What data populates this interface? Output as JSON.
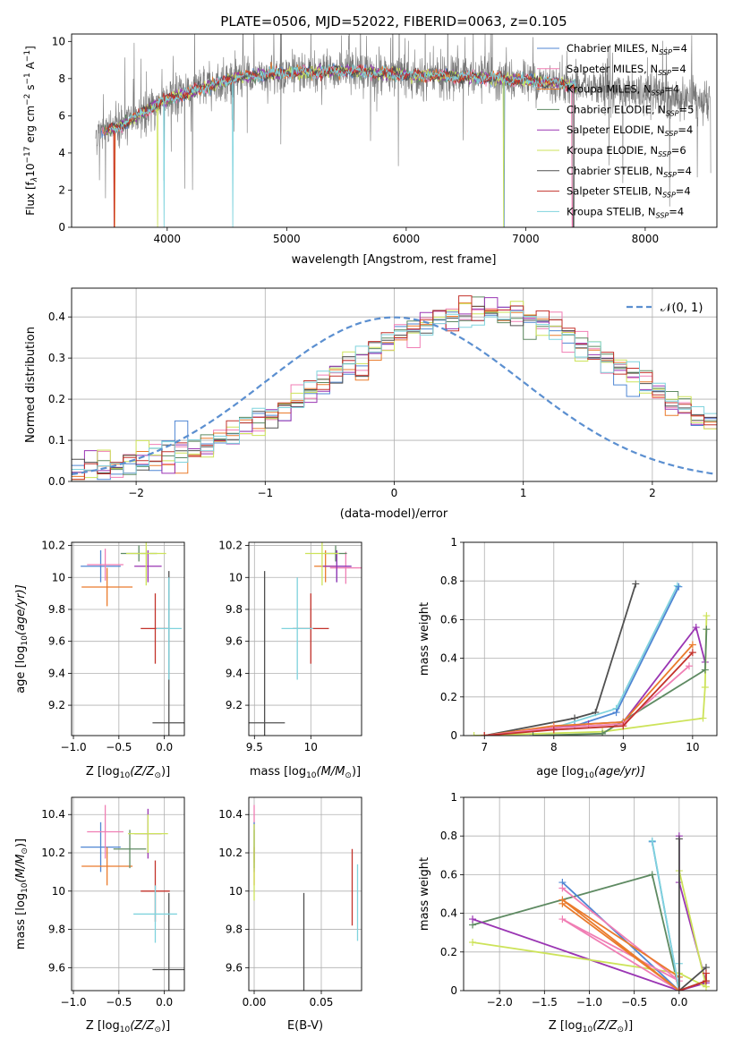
{
  "colors": {
    "chabrier_miles": "#4f86d3",
    "salpeter_miles": "#f07eb4",
    "kroupa_miles": "#ea7b2c",
    "chabrier_elodie": "#5e8a62",
    "salpeter_elodie": "#9a35b3",
    "kroupa_elodie": "#cde35a",
    "chabrier_stelib": "#505050",
    "salpeter_stelib": "#c3322b",
    "kroupa_stelib": "#7fd3dd",
    "norm_curve": "#5b8fd0",
    "grid": "#b0b0b0"
  },
  "chart_data": [
    {
      "type": "line",
      "panel": "spectrum",
      "title": "PLATE=0506, MJD=52022, FIBERID=0063, z=0.105",
      "xlabel": "wavelength [Angstrom, rest frame]",
      "ylabel_main": "Flux [f",
      "ylabel_sub1": "λ",
      "ylabel_mid": "10",
      "ylabel_sup1": "−17",
      "ylabel_rest": " erg cm",
      "ylabel_sup2": "−2",
      "ylabel_s": " s",
      "ylabel_sup3": "−1",
      "ylabel_end": " A",
      "ylabel_sup4": "−1",
      "ylabel_close": "]",
      "xlim": [
        3200,
        8600
      ],
      "ylim": [
        0,
        10.4
      ],
      "xticks": [
        4000,
        5000,
        6000,
        7000,
        8000
      ],
      "yticks": [
        0,
        2,
        4,
        6,
        8,
        10
      ],
      "grid": false,
      "legend_position": "upper-right",
      "legend": [
        {
          "label": "Chabrier MILES, N",
          "sub": "SSP",
          "eq": "=4",
          "color_key": "chabrier_miles"
        },
        {
          "label": "Salpeter MILES, N",
          "sub": "SSP",
          "eq": "=4",
          "color_key": "salpeter_miles"
        },
        {
          "label": "Kroupa MILES, N",
          "sub": "SSP",
          "eq": "=4",
          "color_key": "kroupa_miles"
        },
        {
          "label": "Chabrier ELODIE, N",
          "sub": "SSP",
          "eq": "=5",
          "color_key": "chabrier_elodie"
        },
        {
          "label": "Salpeter ELODIE, N",
          "sub": "SSP",
          "eq": "=4",
          "color_key": "salpeter_elodie"
        },
        {
          "label": "Kroupa ELODIE, N",
          "sub": "SSP",
          "eq": "=6",
          "color_key": "kroupa_elodie"
        },
        {
          "label": "Chabrier STELIB, N",
          "sub": "SSP",
          "eq": "=4",
          "color_key": "chabrier_stelib"
        },
        {
          "label": "Salpeter STELIB, N",
          "sub": "SSP",
          "eq": "=4",
          "color_key": "salpeter_stelib"
        },
        {
          "label": "Kroupa STELIB, N",
          "sub": "SSP",
          "eq": "=4",
          "color_key": "kroupa_stelib"
        }
      ],
      "continuum": [
        [
          3400,
          5.0
        ],
        [
          3600,
          5.4
        ],
        [
          3800,
          6.2
        ],
        [
          4000,
          6.9
        ],
        [
          4300,
          7.5
        ],
        [
          4600,
          8.1
        ],
        [
          5000,
          8.3
        ],
        [
          5500,
          8.4
        ],
        [
          6000,
          8.2
        ],
        [
          6500,
          8.1
        ],
        [
          7000,
          7.9
        ],
        [
          7500,
          7.6
        ],
        [
          8000,
          7.2
        ],
        [
          8500,
          6.8
        ]
      ],
      "models_xrange": [
        3450,
        7420
      ],
      "observed_xrange": [
        3400,
        8550
      ]
    },
    {
      "type": "line",
      "panel": "residuals",
      "xlabel": "(data-model)/error",
      "ylabel": "Normed distribution",
      "xlim": [
        -2.5,
        2.5
      ],
      "ylim": [
        0,
        0.47
      ],
      "xticks": [
        -2,
        -1,
        0,
        1,
        2
      ],
      "yticks": [
        0.0,
        0.1,
        0.2,
        0.3,
        0.4
      ],
      "grid": true,
      "legend_position": "upper-right",
      "legend_label": "𝒩(0, 1)",
      "bin_width": 0.1,
      "histogram_base": [
        0.02,
        0.028,
        0.03,
        0.036,
        0.045,
        0.05,
        0.058,
        0.064,
        0.07,
        0.08,
        0.092,
        0.105,
        0.118,
        0.132,
        0.146,
        0.16,
        0.178,
        0.195,
        0.214,
        0.234,
        0.255,
        0.275,
        0.296,
        0.316,
        0.336,
        0.355,
        0.37,
        0.384,
        0.396,
        0.404,
        0.41,
        0.412,
        0.412,
        0.41,
        0.404,
        0.396,
        0.384,
        0.37,
        0.355,
        0.336,
        0.316,
        0.296,
        0.275,
        0.255,
        0.234,
        0.214,
        0.195,
        0.178,
        0.16,
        0.146
      ]
    },
    {
      "type": "scatter",
      "panel": "age-vs-Z",
      "xlabel_pre": "Z [log",
      "xlabel_sub": "10",
      "xlabel_post": "(Z/Z",
      "xlabel_sun": "⊙",
      "xlabel_close": ")]",
      "ylabel_pre": "age  [log",
      "ylabel_sub": "10",
      "ylabel_post": "(age/yr)]",
      "xlim": [
        -1.02,
        0.22
      ],
      "ylim": [
        9.01,
        10.22
      ],
      "xticks": [
        -1.0,
        -0.5,
        0.0
      ],
      "xticklabels": [
        "−1.0",
        "−0.5",
        "0.0"
      ],
      "yticks": [
        9.2,
        9.4,
        9.6,
        9.8,
        10.0,
        10.2
      ],
      "grid": true,
      "points": [
        {
          "k": "chabrier_miles",
          "x": -0.7,
          "xe": 0.22,
          "y": 10.07,
          "ye": 0.1
        },
        {
          "k": "salpeter_miles",
          "x": -0.65,
          "xe": 0.2,
          "y": 10.08,
          "ye": 0.1
        },
        {
          "k": "kroupa_miles",
          "x": -0.63,
          "xe": 0.28,
          "y": 9.94,
          "ye": 0.12
        },
        {
          "k": "chabrier_elodie",
          "x": -0.28,
          "xe": 0.2,
          "y": 10.15,
          "ye": 0.05
        },
        {
          "k": "salpeter_elodie",
          "x": -0.18,
          "xe": 0.15,
          "y": 10.07,
          "ye": 0.1
        },
        {
          "k": "kroupa_elodie",
          "x": -0.2,
          "xe": 0.22,
          "y": 10.15,
          "ye": 0.2
        },
        {
          "k": "chabrier_stelib",
          "x": 0.05,
          "xe": 0.18,
          "y": 9.09,
          "ye": 0.95
        },
        {
          "k": "salpeter_stelib",
          "x": -0.1,
          "xe": 0.16,
          "y": 9.68,
          "ye": 0.22
        },
        {
          "k": "kroupa_stelib",
          "x": 0.05,
          "xe": 0.14,
          "y": 9.68,
          "ye": 0.32
        }
      ]
    },
    {
      "type": "scatter",
      "panel": "age-vs-mass",
      "xlabel_pre": "mass [log",
      "xlabel_sub": "10",
      "xlabel_post": "(M/M",
      "xlabel_sun": "⊙",
      "xlabel_close": ")]",
      "xlim": [
        9.45,
        10.45
      ],
      "ylim": [
        9.01,
        10.22
      ],
      "xticks": [
        9.5,
        10.0
      ],
      "yticks": [
        9.2,
        9.4,
        9.6,
        9.8,
        10.0,
        10.2
      ],
      "grid": true,
      "points": [
        {
          "k": "chabrier_miles",
          "x": 10.23,
          "xe": 0.13,
          "y": 10.07,
          "ye": 0.1
        },
        {
          "k": "salpeter_miles",
          "x": 10.31,
          "xe": 0.14,
          "y": 10.06,
          "ye": 0.1
        },
        {
          "k": "kroupa_miles",
          "x": 10.13,
          "xe": 0.1,
          "y": 10.07,
          "ye": 0.1
        },
        {
          "k": "chabrier_elodie",
          "x": 10.22,
          "xe": 0.1,
          "y": 10.15,
          "ye": 0.05
        },
        {
          "k": "salpeter_elodie",
          "x": 10.23,
          "xe": 0.13,
          "y": 10.07,
          "ye": 0.1
        },
        {
          "k": "kroupa_elodie",
          "x": 10.1,
          "xe": 0.15,
          "y": 10.15,
          "ye": 0.2
        },
        {
          "k": "chabrier_stelib",
          "x": 9.59,
          "xe": 0.18,
          "y": 9.09,
          "ye": 0.95
        },
        {
          "k": "salpeter_stelib",
          "x": 10.0,
          "xe": 0.16,
          "y": 9.68,
          "ye": 0.22
        },
        {
          "k": "kroupa_stelib",
          "x": 9.88,
          "xe": 0.14,
          "y": 9.68,
          "ye": 0.32
        }
      ]
    },
    {
      "type": "line",
      "panel": "weight-vs-age",
      "xlabel_pre": "age  [log",
      "xlabel_sub": "10",
      "xlabel_post": "(age/yr)]",
      "ylabel": "mass weight",
      "xlim": [
        6.7,
        10.35
      ],
      "ylim": [
        0,
        1.0
      ],
      "xticks": [
        7,
        8,
        9,
        10
      ],
      "yticks": [
        0.0,
        0.2,
        0.4,
        0.6,
        0.8,
        1.0
      ],
      "grid": true,
      "series": [
        {
          "k": "chabrier_stelib",
          "points": [
            [
              7.0,
              0.0
            ],
            [
              8.3,
              0.09
            ],
            [
              8.6,
              0.12
            ],
            [
              9.18,
              0.785
            ]
          ]
        },
        {
          "k": "kroupa_stelib",
          "points": [
            [
              7.0,
              0.0
            ],
            [
              8.0,
              0.04
            ],
            [
              8.9,
              0.14
            ],
            [
              9.78,
              0.775
            ]
          ]
        },
        {
          "k": "chabrier_miles",
          "points": [
            [
              7.0,
              0.0
            ],
            [
              8.3,
              0.05
            ],
            [
              8.9,
              0.12
            ],
            [
              9.8,
              0.77
            ]
          ]
        },
        {
          "k": "salpeter_elodie",
          "points": [
            [
              7.0,
              0.0
            ],
            [
              8.5,
              0.06
            ],
            [
              9.0,
              0.07
            ],
            [
              10.05,
              0.56
            ],
            [
              10.18,
              0.38
            ]
          ]
        },
        {
          "k": "kroupa_elodie",
          "points": [
            [
              6.85,
              0.0
            ],
            [
              8.7,
              0.02
            ],
            [
              10.15,
              0.09
            ],
            [
              10.18,
              0.25
            ],
            [
              10.2,
              0.62
            ]
          ]
        },
        {
          "k": "chabrier_elodie",
          "points": [
            [
              7.7,
              0.0
            ],
            [
              8.7,
              0.01
            ],
            [
              10.18,
              0.34
            ],
            [
              10.2,
              0.55
            ]
          ]
        },
        {
          "k": "kroupa_miles",
          "points": [
            [
              7.0,
              0.0
            ],
            [
              8.0,
              0.05
            ],
            [
              9.0,
              0.07
            ],
            [
              10.0,
              0.47
            ]
          ]
        },
        {
          "k": "salpeter_miles",
          "points": [
            [
              7.0,
              0.0
            ],
            [
              8.0,
              0.04
            ],
            [
              9.0,
              0.06
            ],
            [
              9.95,
              0.36
            ]
          ]
        },
        {
          "k": "salpeter_stelib",
          "points": [
            [
              7.0,
              0.0
            ],
            [
              8.0,
              0.03
            ],
            [
              9.0,
              0.05
            ],
            [
              10.0,
              0.43
            ]
          ]
        }
      ]
    },
    {
      "type": "scatter",
      "panel": "mass-vs-Z",
      "xlabel_pre": "Z [log",
      "xlabel_sub": "10",
      "xlabel_post": "(Z/Z",
      "xlabel_sun": "⊙",
      "xlabel_close": ")]",
      "ylabel_pre": "mass [log",
      "ylabel_sub": "10",
      "ylabel_post": "(M/M",
      "ylabel_sun": "⊙",
      "ylabel_close": ")]",
      "xlim": [
        -1.02,
        0.22
      ],
      "ylim": [
        9.48,
        10.49
      ],
      "xticks": [
        -1.0,
        -0.5,
        0.0
      ],
      "xticklabels": [
        "−1.0",
        "−0.5",
        "0.0"
      ],
      "yticks": [
        9.6,
        9.8,
        10.0,
        10.2,
        10.4
      ],
      "grid": true,
      "points": [
        {
          "k": "chabrier_miles",
          "x": -0.7,
          "xe": 0.22,
          "y": 10.23,
          "ye": 0.13
        },
        {
          "k": "salpeter_miles",
          "x": -0.65,
          "xe": 0.2,
          "y": 10.31,
          "ye": 0.14
        },
        {
          "k": "kroupa_miles",
          "x": -0.63,
          "xe": 0.28,
          "y": 10.13,
          "ye": 0.1
        },
        {
          "k": "chabrier_elodie",
          "x": -0.38,
          "xe": 0.18,
          "y": 10.22,
          "ye": 0.1
        },
        {
          "k": "salpeter_elodie",
          "x": -0.18,
          "xe": 0.15,
          "y": 10.3,
          "ye": 0.13
        },
        {
          "k": "kroupa_elodie",
          "x": -0.18,
          "xe": 0.22,
          "y": 10.3,
          "ye": 0.1
        },
        {
          "k": "chabrier_stelib",
          "x": 0.05,
          "xe": 0.18,
          "y": 9.59,
          "ye": 0.4
        },
        {
          "k": "salpeter_stelib",
          "x": -0.1,
          "xe": 0.16,
          "y": 10.0,
          "ye": 0.16
        },
        {
          "k": "kroupa_stelib",
          "x": -0.1,
          "xe": 0.24,
          "y": 9.88,
          "ye": 0.15
        }
      ]
    },
    {
      "type": "scatter",
      "panel": "mass-vs-EBV",
      "xlabel": "E(B-V)",
      "xlim": [
        -0.004,
        0.08
      ],
      "ylim": [
        9.48,
        10.49
      ],
      "xticks": [
        0.0,
        0.05
      ],
      "xticklabels": [
        "0.00",
        "0.05"
      ],
      "yticks": [
        9.6,
        9.8,
        10.0,
        10.2,
        10.4
      ],
      "grid": true,
      "points": [
        {
          "k": "salpeter_miles",
          "x": 0.0,
          "xe": 0.0,
          "y": 10.3,
          "ye": 0.15
        },
        {
          "k": "chabrier_miles",
          "x": 0.0,
          "xe": 0.0,
          "y": 10.23,
          "ye": 0.13
        },
        {
          "k": "kroupa_miles",
          "x": 0.0,
          "xe": 0.0,
          "y": 10.13,
          "ye": 0.1
        },
        {
          "k": "chabrier_elodie",
          "x": 0.0,
          "xe": 0.0,
          "y": 10.22,
          "ye": 0.1
        },
        {
          "k": "kroupa_elodie",
          "x": 0.0,
          "xe": 0.0,
          "y": 10.15,
          "ye": 0.2
        },
        {
          "k": "chabrier_stelib",
          "x": 0.037,
          "xe": 0.0,
          "y": 9.59,
          "ye": 0.4
        },
        {
          "k": "salpeter_stelib",
          "x": 0.073,
          "xe": 0.0,
          "y": 10.02,
          "ye": 0.2
        },
        {
          "k": "kroupa_stelib",
          "x": 0.077,
          "xe": 0.0,
          "y": 9.94,
          "ye": 0.2
        }
      ]
    },
    {
      "type": "line",
      "panel": "weight-vs-Z",
      "xlabel_pre": "Z [log",
      "xlabel_sub": "10",
      "xlabel_post": "(Z/Z",
      "xlabel_sun": "⊙",
      "xlabel_close": ")]",
      "ylabel": "mass weight",
      "xlim": [
        -2.4,
        0.42
      ],
      "ylim": [
        0,
        1.0
      ],
      "xticks": [
        -2.0,
        -1.5,
        -1.0,
        -0.5,
        0.0
      ],
      "xticklabels": [
        "−2.0",
        "−1.5",
        "−1.0",
        "−0.5",
        "0.0"
      ],
      "yticks": [
        0.0,
        0.2,
        0.4,
        0.6,
        0.8,
        1.0
      ],
      "grid": true,
      "series": [
        {
          "k": "chabrier_elodie",
          "points": [
            [
              -2.3,
              0.34
            ],
            [
              -0.3,
              0.6
            ],
            [
              0.0,
              0.0
            ],
            [
              0.3,
              0.05
            ]
          ]
        },
        {
          "k": "salpeter_elodie",
          "points": [
            [
              -2.3,
              0.37
            ],
            [
              0.0,
              0.0
            ],
            [
              0.3,
              0.04
            ],
            [
              0.0,
              0.56
            ],
            [
              0.0,
              0.8
            ]
          ]
        },
        {
          "k": "kroupa_elodie",
          "points": [
            [
              -2.3,
              0.25
            ],
            [
              0.0,
              0.09
            ],
            [
              0.3,
              0.02
            ],
            [
              0.0,
              0.62
            ]
          ]
        },
        {
          "k": "chabrier_miles",
          "points": [
            [
              -1.3,
              0.56
            ],
            [
              0.0,
              0.0
            ],
            [
              -0.3,
              0.77
            ],
            [
              0.0,
              0.0
            ]
          ]
        },
        {
          "k": "salpeter_miles",
          "points": [
            [
              -1.3,
              0.53
            ],
            [
              0.0,
              0.05
            ],
            [
              -1.3,
              0.37
            ],
            [
              0.0,
              0.0
            ]
          ]
        },
        {
          "k": "kroupa_miles",
          "points": [
            [
              -1.3,
              0.45
            ],
            [
              0.0,
              0.0
            ],
            [
              -1.3,
              0.47
            ],
            [
              0.0,
              0.07
            ]
          ]
        },
        {
          "k": "kroupa_stelib",
          "points": [
            [
              -0.3,
              0.775
            ],
            [
              0.0,
              0.0
            ],
            [
              0.0,
              0.14
            ]
          ]
        },
        {
          "k": "chabrier_stelib",
          "points": [
            [
              0.0,
              0.785
            ],
            [
              0.0,
              0.0
            ],
            [
              0.3,
              0.12
            ]
          ]
        },
        {
          "k": "salpeter_stelib",
          "points": [
            [
              0.0,
              0.0
            ],
            [
              0.3,
              0.05
            ],
            [
              0.3,
              0.09
            ]
          ]
        }
      ]
    }
  ]
}
